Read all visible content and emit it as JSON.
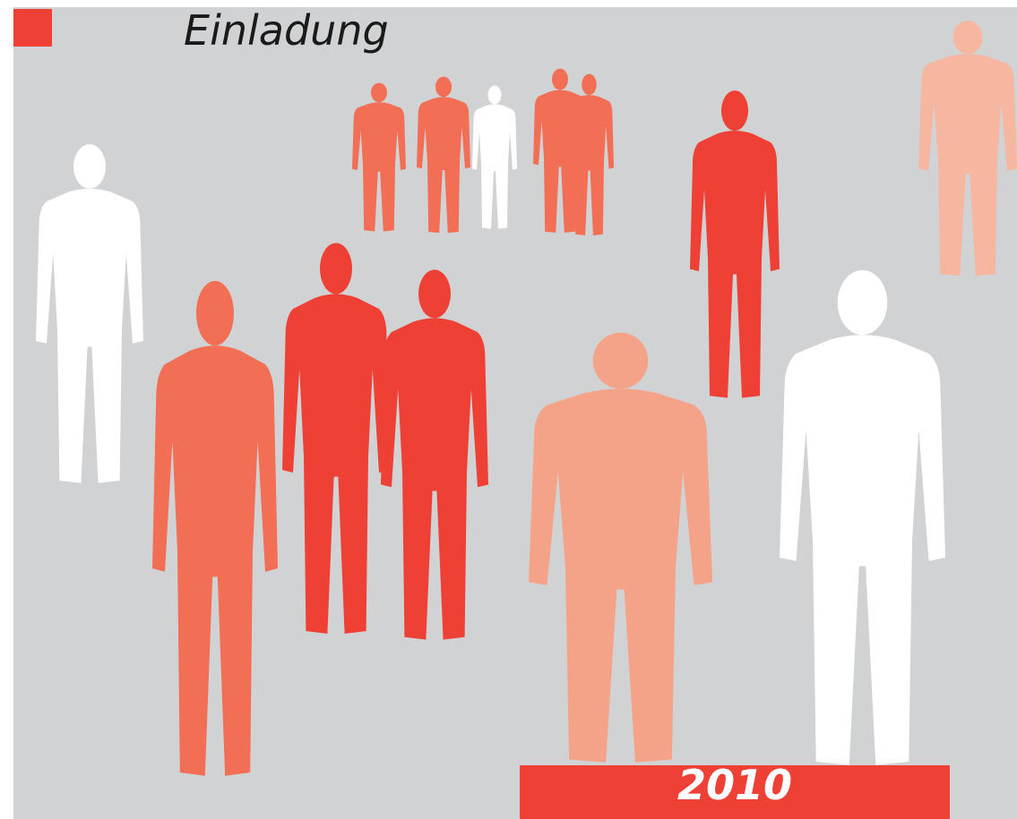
{
  "title": "Einladung",
  "year": "2010"
}
